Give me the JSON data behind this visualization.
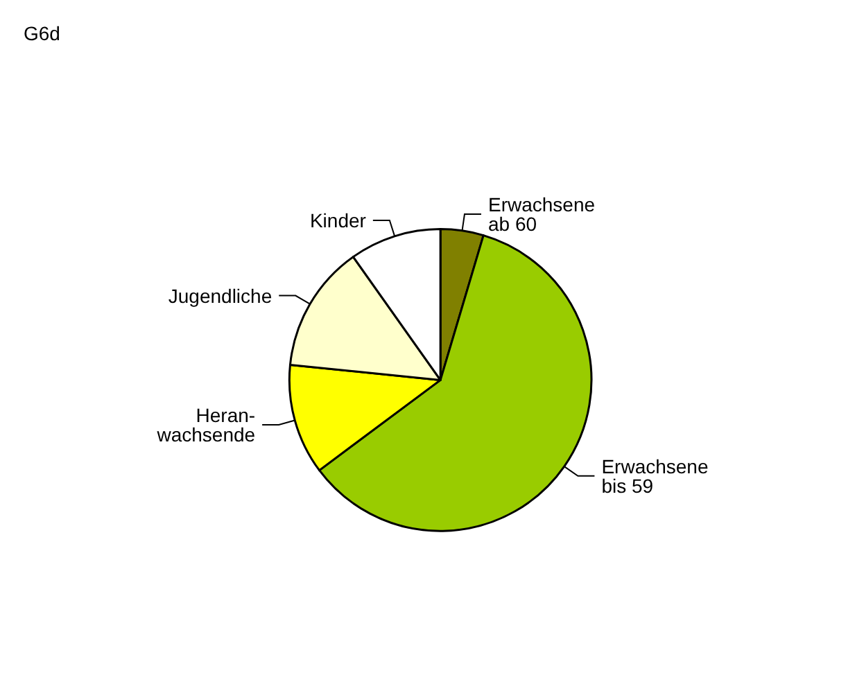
{
  "chart_data": {
    "type": "pie",
    "title": "G6d",
    "categories": [
      "Erwachsene\nab 60",
      "Erwachsene\nbis 59",
      "Heran-\nwachsende",
      "Jugendliche",
      "Kinder"
    ],
    "values": [
      4.6,
      60.2,
      11.8,
      13.6,
      9.8
    ],
    "colors": [
      "#808000",
      "#99cc00",
      "#ffff00",
      "#ffffcc",
      "#ffffff"
    ],
    "legend": false
  }
}
